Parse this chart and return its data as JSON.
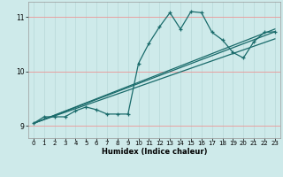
{
  "bg_color": "#ceeaea",
  "line_color": "#1a6b6b",
  "grid_color_v": "#b8d8d8",
  "grid_color_h": "#e8a0a0",
  "xlabel": "Humidex (Indice chaleur)",
  "ylim": [
    8.78,
    11.28
  ],
  "xlim": [
    -0.5,
    23.5
  ],
  "yticks": [
    9,
    10,
    11
  ],
  "xticks": [
    0,
    1,
    2,
    3,
    4,
    5,
    6,
    7,
    8,
    9,
    10,
    11,
    12,
    13,
    14,
    15,
    16,
    17,
    18,
    19,
    20,
    21,
    22,
    23
  ],
  "curve1_x": [
    0,
    1,
    2,
    3,
    4,
    5,
    6,
    7,
    8,
    9,
    10,
    11,
    12,
    13,
    14,
    15,
    16,
    17,
    18,
    19,
    20,
    21,
    22,
    23
  ],
  "curve1_y": [
    9.05,
    9.17,
    9.17,
    9.17,
    9.28,
    9.35,
    9.3,
    9.22,
    9.22,
    9.22,
    10.15,
    10.52,
    10.82,
    11.08,
    10.78,
    11.1,
    11.08,
    10.72,
    10.58,
    10.35,
    10.25,
    10.55,
    10.72,
    10.73
  ],
  "line2_x": [
    0,
    23
  ],
  "line2_y": [
    9.05,
    10.73
  ],
  "line3_x": [
    0,
    23
  ],
  "line3_y": [
    9.05,
    10.6
  ],
  "line4_x": [
    0,
    23
  ],
  "line4_y": [
    9.05,
    10.78
  ]
}
